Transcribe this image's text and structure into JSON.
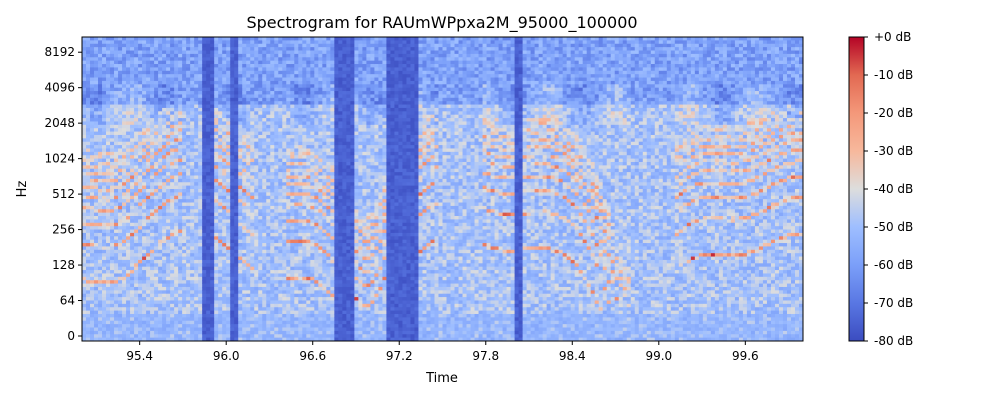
{
  "chart_data": {
    "type": "heatmap",
    "title": "Spectrogram for RAUmWPpxa2M_95000_100000",
    "xlabel": "Time",
    "ylabel": "Hz",
    "xlim": [
      95.0,
      100.0
    ],
    "x_ticks": [
      95.4,
      96.0,
      96.6,
      97.2,
      97.8,
      98.4,
      99.0,
      99.6
    ],
    "x_tick_labels": [
      "95.4",
      "96.0",
      "96.6",
      "97.2",
      "97.8",
      "98.4",
      "99.0",
      "99.6"
    ],
    "y_scale": "symlog",
    "y_ticks": [
      0,
      64,
      128,
      256,
      512,
      1024,
      2048,
      4096,
      8192
    ],
    "y_tick_labels": [
      "0",
      "64",
      "128",
      "256",
      "512",
      "1024",
      "2048",
      "4096",
      "8192"
    ],
    "ylim": [
      0,
      11025
    ],
    "colorbar": {
      "label_unit": "dB",
      "vmin": -80,
      "vmax": 0,
      "ticks": [
        0,
        -10,
        -20,
        -30,
        -40,
        -50,
        -60,
        -70,
        -80
      ],
      "tick_labels": [
        "+0 dB",
        "-10 dB",
        "-20 dB",
        "-30 dB",
        "-40 dB",
        "-50 dB",
        "-60 dB",
        "-70 dB",
        "-80 dB"
      ],
      "colormap": "coolwarm"
    },
    "grid": false,
    "legend": "none",
    "silent_gaps": [
      [
        95.84,
        95.92
      ],
      [
        96.02,
        96.08
      ],
      [
        96.74,
        96.88
      ],
      [
        97.1,
        97.32
      ],
      [
        98.0,
        98.06
      ]
    ]
  }
}
